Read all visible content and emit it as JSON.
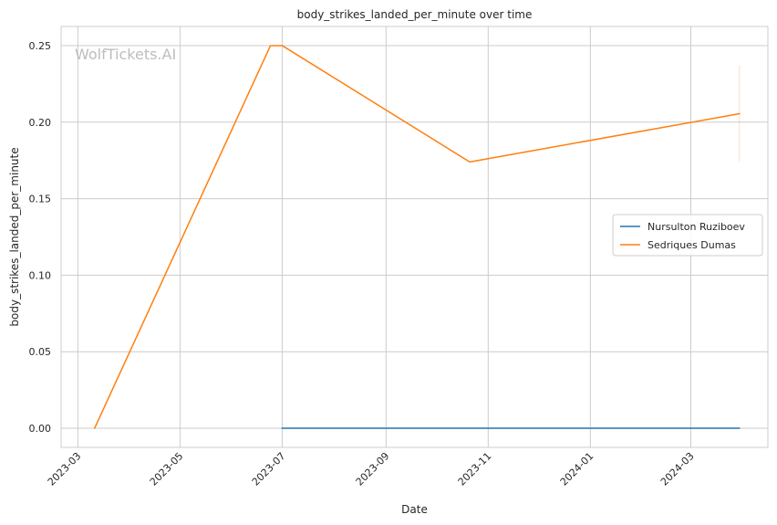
{
  "chart_data": {
    "type": "line",
    "title": "body_strikes_landed_per_minute over time",
    "xlabel": "Date",
    "ylabel": "body_strikes_landed_per_minute",
    "watermark": "WolfTickets.AI",
    "x_ticks": [
      "2023-03",
      "2023-05",
      "2023-07",
      "2023-09",
      "2023-11",
      "2024-01",
      "2024-03"
    ],
    "y_ticks": [
      "0.00",
      "0.05",
      "0.10",
      "0.15",
      "0.20",
      "0.25"
    ],
    "xlim": [
      "2023-02-19",
      "2024-04-16"
    ],
    "ylim": [
      -0.0125,
      0.2625
    ],
    "grid": true,
    "legend_position": "center-right",
    "series": [
      {
        "name": "Nursulton Ruziboev",
        "color": "#1f77b4",
        "x": [
          "2023-07-01",
          "2024-03-30"
        ],
        "y": [
          0.0,
          0.0
        ]
      },
      {
        "name": "Sedriques Dumas",
        "color": "#ff7f0e",
        "x": [
          "2023-03-11",
          "2023-06-24",
          "2023-07-01",
          "2023-10-21",
          "2024-03-30"
        ],
        "y": [
          0.0,
          0.25,
          0.25,
          0.174,
          0.2055
        ],
        "error_band": {
          "x": "2024-03-30",
          "low": 0.174,
          "high": 0.237
        }
      }
    ]
  }
}
